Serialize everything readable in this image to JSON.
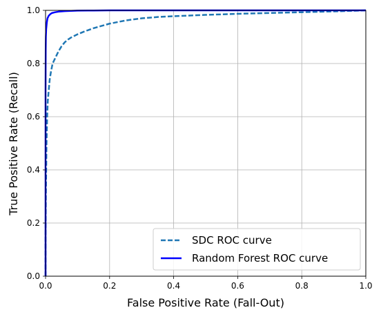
{
  "chart_data": {
    "type": "line",
    "title": "",
    "xlabel": "False Positive Rate (Fall-Out)",
    "ylabel": "True Positive Rate (Recall)",
    "xlim": [
      0,
      1
    ],
    "ylim": [
      0,
      1
    ],
    "x_ticks": [
      "0.0",
      "0.2",
      "0.4",
      "0.6",
      "0.8",
      "1.0"
    ],
    "y_ticks": [
      "0.0",
      "0.2",
      "0.4",
      "0.6",
      "0.8",
      "1.0"
    ],
    "grid": true,
    "legend_position": "lower-right",
    "series": [
      {
        "name": "SDC ROC curve",
        "style": "dashed",
        "color": "#1f77b4",
        "x": [
          0.0,
          0.0,
          0.001,
          0.002,
          0.003,
          0.005,
          0.007,
          0.01,
          0.013,
          0.017,
          0.022,
          0.03,
          0.04,
          0.05,
          0.06,
          0.07,
          0.08,
          0.1,
          0.12,
          0.15,
          0.2,
          0.25,
          0.3,
          0.35,
          0.4,
          0.5,
          0.6,
          0.7,
          0.8,
          0.9,
          0.95,
          1.0
        ],
        "y": [
          0.0,
          0.15,
          0.3,
          0.4,
          0.5,
          0.6,
          0.66,
          0.7,
          0.74,
          0.77,
          0.8,
          0.82,
          0.845,
          0.865,
          0.88,
          0.89,
          0.898,
          0.91,
          0.92,
          0.933,
          0.95,
          0.962,
          0.97,
          0.975,
          0.978,
          0.983,
          0.987,
          0.99,
          0.993,
          0.996,
          0.998,
          1.0
        ]
      },
      {
        "name": "Random Forest ROC curve",
        "style": "solid",
        "color": "#0000ff",
        "x": [
          0.0,
          0.0,
          0.0005,
          0.001,
          0.002,
          0.004,
          0.006,
          0.01,
          0.015,
          0.02,
          0.03,
          0.04,
          0.06,
          0.08,
          0.1,
          0.15,
          0.2,
          0.3,
          0.5,
          0.7,
          1.0
        ],
        "y": [
          0.0,
          0.7,
          0.85,
          0.9,
          0.93,
          0.955,
          0.97,
          0.98,
          0.986,
          0.99,
          0.993,
          0.995,
          0.997,
          0.998,
          0.999,
          0.9995,
          1.0,
          1.0,
          1.0,
          1.0,
          1.0
        ]
      }
    ]
  }
}
